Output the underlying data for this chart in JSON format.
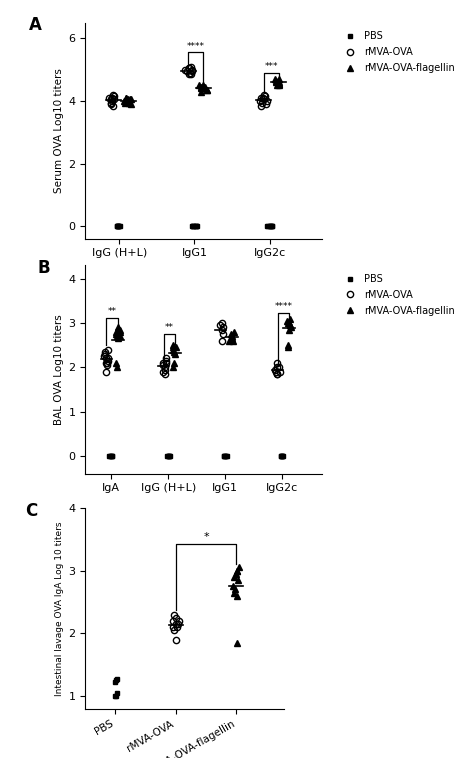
{
  "panel_A": {
    "ylabel": "Serum OVA Log10 titers",
    "ylim": [
      -0.4,
      6.5
    ],
    "yticks": [
      0,
      2,
      4,
      6
    ],
    "groups": [
      "IgG (H+L)",
      "IgG1",
      "IgG2c"
    ],
    "PBS": {
      "IgG (H+L)": [
        0.0,
        0.0,
        0.0,
        0.0,
        0.0,
        0.0,
        0.0,
        0.0
      ],
      "IgG1": [
        0.0,
        0.0,
        0.0,
        0.0,
        0.0,
        0.0,
        0.0,
        0.0
      ],
      "IgG2c": [
        0.0,
        0.0,
        0.0,
        0.0,
        0.0,
        0.0,
        0.0,
        0.0
      ]
    },
    "rMVA_OVA": {
      "IgG (H+L)": [
        3.85,
        4.1,
        4.15,
        4.2,
        4.1,
        4.0,
        3.9,
        4.05,
        3.95,
        4.05
      ],
      "IgG1": [
        4.85,
        4.95,
        5.05,
        5.0,
        4.9,
        5.1,
        5.0,
        4.95,
        4.85,
        5.05
      ],
      "IgG2c": [
        4.0,
        4.2,
        3.9,
        4.1,
        4.15,
        3.95,
        4.05,
        4.1,
        3.85,
        4.0
      ]
    },
    "rMVA_OVA_flag": {
      "IgG (H+L)": [
        3.95,
        4.05,
        4.1,
        4.0,
        3.9,
        4.05,
        3.95,
        4.1,
        4.0,
        4.05
      ],
      "IgG1": [
        4.3,
        4.4,
        4.5,
        4.45,
        4.35,
        4.4,
        4.5,
        4.35,
        4.45,
        4.4
      ],
      "IgG2c": [
        4.5,
        4.6,
        4.7,
        4.55,
        4.65,
        4.6,
        4.5,
        4.7,
        4.55,
        4.6
      ]
    },
    "sig": {
      "IgG1": "****",
      "IgG2c": "***"
    }
  },
  "panel_B": {
    "ylabel": "BAL OVA Log10 titers",
    "ylim": [
      -0.4,
      4.3
    ],
    "yticks": [
      0,
      1,
      2,
      3,
      4
    ],
    "groups": [
      "IgA",
      "IgG (H+L)",
      "IgG1",
      "IgG2c"
    ],
    "PBS": {
      "IgA": [
        0.0,
        0.0,
        0.0,
        0.0,
        0.0,
        0.0
      ],
      "IgG (H+L)": [
        0.0,
        0.0,
        0.0,
        0.0,
        0.0,
        0.0
      ],
      "IgG1": [
        0.0,
        0.0,
        0.0,
        0.0,
        0.0,
        0.0
      ],
      "IgG2c": [
        0.0,
        0.0,
        0.0,
        0.0,
        0.0,
        0.0
      ]
    },
    "rMVA_OVA": {
      "IgA": [
        2.1,
        2.2,
        2.3,
        2.15,
        2.05,
        2.4,
        2.25,
        2.35,
        1.9,
        2.1,
        2.2
      ],
      "IgG (H+L)": [
        2.0,
        2.1,
        2.2,
        1.85,
        1.95,
        2.05,
        2.1,
        1.9,
        2.15
      ],
      "IgG1": [
        2.95,
        3.0,
        2.9,
        2.85,
        2.6,
        2.75
      ],
      "IgG2c": [
        2.0,
        2.1,
        1.85,
        1.9,
        1.95,
        2.0,
        1.85,
        1.9
      ]
    },
    "rMVA_OVA_flag": {
      "IgA": [
        2.7,
        2.8,
        2.75,
        2.85,
        2.65,
        2.9,
        2.8,
        2.7,
        2.0,
        2.1
      ],
      "IgG (H+L)": [
        2.35,
        2.45,
        2.5,
        2.4,
        2.3,
        2.45,
        2.0,
        2.1
      ],
      "IgG1": [
        2.6,
        2.7,
        2.65,
        2.75,
        2.8,
        2.6
      ],
      "IgG2c": [
        2.85,
        2.95,
        3.0,
        3.05,
        2.9,
        3.0,
        3.1,
        2.45,
        2.5,
        3.0,
        2.95
      ]
    },
    "sig": {
      "IgA": "**",
      "IgG (H+L)": "**",
      "IgG2c": "****"
    }
  },
  "panel_C": {
    "ylabel": "Intestinal lavage OVA IgA Log 10 titers",
    "ylim": [
      0.8,
      3.6
    ],
    "yticks": [
      1,
      2,
      3,
      4
    ],
    "groups": [
      "PBS",
      "rMVA-OVA",
      "rMVA-OVA-flagellin"
    ],
    "PBS": [
      1.0,
      1.0,
      1.05,
      1.25,
      1.28,
      1.22
    ],
    "rMVA_OVA": [
      2.1,
      2.2,
      2.3,
      2.15,
      2.25,
      1.9,
      2.15,
      2.2,
      2.1,
      2.05
    ],
    "rMVA_OVA_flag": [
      2.85,
      2.9,
      3.0,
      3.05,
      3.0,
      2.95,
      2.75,
      2.7,
      2.65,
      2.6,
      1.85
    ],
    "sig": {
      "rMVA_OVA_vs_flag": "*"
    }
  },
  "markersize": 4.5,
  "legend_labels": [
    "PBS",
    "rMVA-OVA",
    "rMVA-OVA-flagellin"
  ]
}
